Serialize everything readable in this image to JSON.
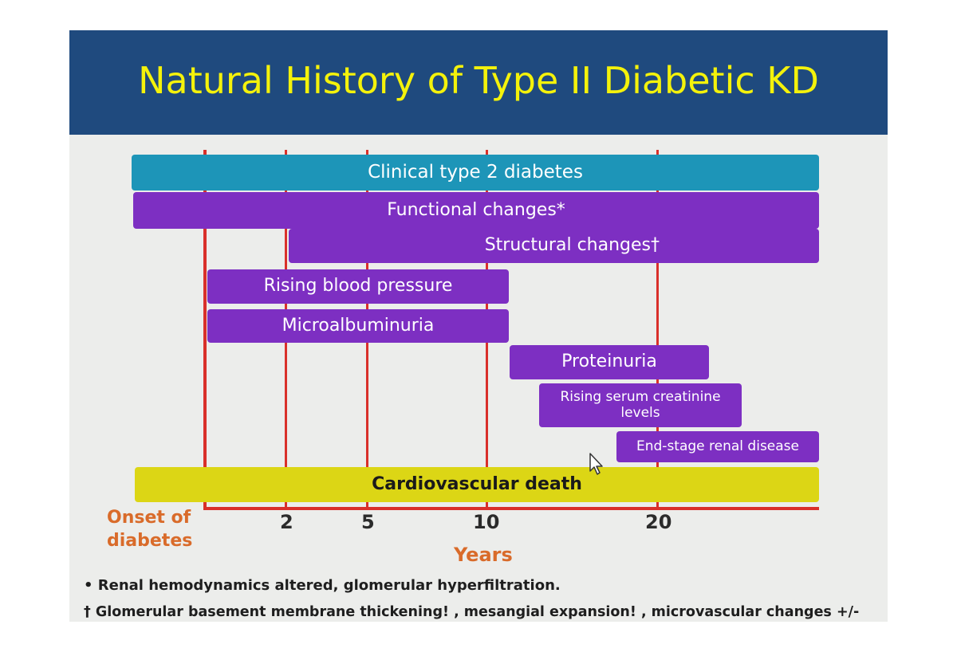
{
  "title": "Natural History of Type II Diabetic KD",
  "timeline": {
    "x_axis_label": "Years",
    "origin_label": "Onset of diabetes",
    "ticks": [
      "2",
      "5",
      "10",
      "20"
    ],
    "bars": [
      {
        "label": "Clinical type 2 diabetes",
        "start": "Onset of diabetes",
        "end": "beyond 20 years",
        "color": "#1d95b8"
      },
      {
        "label": "Functional changes*",
        "start": "Onset of diabetes",
        "end": "beyond 20 years",
        "color": "#7d2fc2"
      },
      {
        "label": "Structural changes†",
        "start": 2,
        "end": "beyond 20 years",
        "color": "#7d2fc2"
      },
      {
        "label": "Rising blood pressure",
        "start": "Onset of diabetes",
        "end": 10,
        "color": "#7d2fc2"
      },
      {
        "label": "Microalbuminuria",
        "start": "Onset of diabetes",
        "end": 10,
        "color": "#7d2fc2"
      },
      {
        "label": "Proteinuria",
        "start": 10,
        "end": 20,
        "color": "#7d2fc2"
      },
      {
        "label": "Rising serum creatinine levels",
        "start": 12,
        "end": 20,
        "color": "#7d2fc2"
      },
      {
        "label": "End-stage renal disease",
        "start": 17,
        "end": "beyond 20 years",
        "color": "#7d2fc2"
      },
      {
        "label": "Cardiovascular death",
        "start": "Onset of diabetes",
        "end": "beyond 20 years",
        "color": "#dcd615"
      }
    ]
  },
  "footnotes": [
    "• Renal hemodynamics altered, glomerular hyperfiltration.",
    "† Glomerular basement membrane thickening! , mesangial expansion! , microvascular changes +/-"
  ],
  "colors": {
    "title_bar": "#1f4a7e",
    "title_text": "#f4f20b",
    "axis": "#d9302a",
    "orange_label": "#d96b2a"
  },
  "cursor_icon": "mouse-pointer-icon"
}
